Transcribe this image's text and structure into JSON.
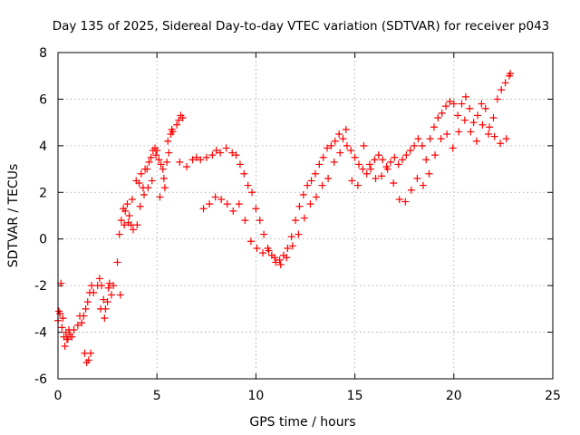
{
  "chart_data": {
    "type": "scatter",
    "title": "Day 135 of 2025, Sidereal Day-to-day VTEC variation (SDTVAR) for receiver p043",
    "xlabel": "GPS time / hours",
    "ylabel": "SDTVAR / TECUs",
    "xlim": [
      0,
      25
    ],
    "ylim": [
      -6,
      8
    ],
    "xticks": [
      0,
      5,
      10,
      15,
      20,
      25
    ],
    "yticks": [
      -6,
      -4,
      -2,
      0,
      2,
      4,
      6,
      8
    ],
    "xtick_labels": [
      "0",
      "5",
      "10",
      "15",
      "20",
      "25"
    ],
    "ytick_labels": [
      "-6",
      "-4",
      "-2",
      "0",
      "2",
      "4",
      "6",
      "8"
    ],
    "grid": true,
    "marker": "plus",
    "series": [
      {
        "name": "SDTVAR",
        "color": "#ff0000",
        "x": [
          0.0,
          0.1,
          0.2,
          0.3,
          0.4,
          0.5,
          0.6,
          0.7,
          0.8,
          1.0,
          1.1,
          1.2,
          1.3,
          1.4,
          1.5,
          1.6,
          1.7,
          1.8,
          2.0,
          2.1,
          2.2,
          2.3,
          2.4,
          2.5,
          2.6,
          2.7,
          2.8,
          3.0,
          3.1,
          3.2,
          3.3,
          3.4,
          3.5,
          3.6,
          3.7,
          3.8,
          4.0,
          4.1,
          4.2,
          4.3,
          4.4,
          4.5,
          4.6,
          4.7,
          4.8,
          4.9,
          5.0,
          5.1,
          5.2,
          5.3,
          5.4,
          5.5,
          5.6,
          5.7,
          5.8,
          6.0,
          6.1,
          6.2,
          6.3,
          6.5,
          6.8,
          7.0,
          7.2,
          7.5,
          7.8,
          8.0,
          8.2,
          8.5,
          8.8,
          9.0,
          9.2,
          9.4,
          9.6,
          9.8,
          10.0,
          10.2,
          10.4,
          10.6,
          10.8,
          11.0,
          11.2,
          11.4,
          11.6,
          11.8,
          12.0,
          12.2,
          12.4,
          12.6,
          12.8,
          13.0,
          13.2,
          13.4,
          13.6,
          13.8,
          14.0,
          14.2,
          14.4,
          14.6,
          14.8,
          15.0,
          15.2,
          15.4,
          15.6,
          15.8,
          16.0,
          16.2,
          16.4,
          16.6,
          16.8,
          17.0,
          17.2,
          17.4,
          17.6,
          17.8,
          18.0,
          18.2,
          18.4,
          18.6,
          18.8,
          19.0,
          19.2,
          19.4,
          19.6,
          19.8,
          20.0,
          20.2,
          20.4,
          20.6,
          20.8,
          21.0,
          21.2,
          21.4,
          21.6,
          21.8,
          22.0,
          22.2,
          22.4,
          22.6,
          22.8,
          0.05,
          0.15,
          0.25,
          0.35,
          0.45,
          0.55,
          1.35,
          1.45,
          1.55,
          1.65,
          2.15,
          2.35,
          2.55,
          3.15,
          3.35,
          3.55,
          3.75,
          3.95,
          4.15,
          4.35,
          4.55,
          4.75,
          4.95,
          5.15,
          5.35,
          5.55,
          5.75,
          6.15,
          7.35,
          7.65,
          7.95,
          8.25,
          8.55,
          8.85,
          9.15,
          9.45,
          9.75,
          10.05,
          10.35,
          10.65,
          10.95,
          11.25,
          11.55,
          11.85,
          12.15,
          12.45,
          12.75,
          13.05,
          13.35,
          13.65,
          13.95,
          14.25,
          14.55,
          14.85,
          15.15,
          15.45,
          15.75,
          16.05,
          16.35,
          16.65,
          16.95,
          17.25,
          17.55,
          17.85,
          18.15,
          18.45,
          18.75,
          19.05,
          19.35,
          19.65,
          19.95,
          20.25,
          20.55,
          20.85,
          21.15,
          21.45,
          21.75,
          22.05,
          22.35,
          22.65,
          22.85
        ],
        "y": [
          -3.5,
          -3.2,
          -3.8,
          -4.2,
          -4.0,
          -4.3,
          -4.1,
          -4.2,
          -3.9,
          -3.7,
          -3.3,
          -3.6,
          -3.3,
          -3.0,
          -2.7,
          -2.3,
          -2.0,
          -2.3,
          -2.0,
          -1.7,
          -2.0,
          -2.6,
          -3.0,
          -2.7,
          -1.9,
          -2.4,
          -2.0,
          -1.0,
          0.2,
          0.8,
          1.3,
          1.2,
          1.5,
          1.0,
          0.6,
          0.4,
          0.6,
          2.4,
          2.8,
          2.2,
          3.0,
          3.0,
          3.3,
          3.5,
          3.8,
          3.9,
          3.8,
          3.4,
          3.2,
          3.0,
          2.2,
          3.3,
          3.7,
          4.5,
          4.6,
          4.9,
          5.1,
          5.3,
          5.2,
          3.1,
          3.4,
          3.5,
          3.4,
          3.5,
          3.6,
          3.8,
          3.7,
          3.9,
          3.7,
          3.6,
          3.2,
          2.8,
          2.3,
          2.0,
          1.3,
          0.8,
          0.2,
          -0.4,
          -0.7,
          -1.0,
          -0.9,
          -0.7,
          -0.4,
          0.1,
          0.8,
          1.4,
          1.9,
          2.3,
          2.5,
          2.8,
          3.2,
          3.5,
          3.9,
          4.0,
          4.2,
          4.5,
          4.3,
          4.0,
          3.8,
          3.5,
          3.2,
          3.0,
          2.8,
          3.0,
          3.4,
          3.6,
          3.4,
          3.1,
          3.3,
          3.5,
          3.2,
          3.4,
          3.6,
          3.8,
          4.0,
          4.3,
          4.0,
          3.4,
          4.3,
          4.8,
          5.2,
          5.4,
          5.7,
          5.9,
          5.8,
          5.3,
          5.8,
          6.1,
          5.6,
          5.0,
          5.3,
          5.8,
          5.6,
          4.8,
          5.2,
          6.0,
          6.4,
          6.7,
          7.0,
          -3.1,
          -1.9,
          -3.4,
          -4.6,
          -4.3,
          -3.9,
          -4.9,
          -5.3,
          -5.2,
          -4.9,
          -3.0,
          -3.4,
          -2.1,
          -2.4,
          0.6,
          0.7,
          1.7,
          2.5,
          1.4,
          1.9,
          2.2,
          2.5,
          3.6,
          1.8,
          2.6,
          4.2,
          4.7,
          3.3,
          1.3,
          1.5,
          1.8,
          1.7,
          1.5,
          1.2,
          1.5,
          0.8,
          -0.1,
          -0.4,
          -0.6,
          -0.5,
          -0.8,
          -1.1,
          -0.8,
          -0.3,
          0.2,
          0.9,
          1.5,
          1.8,
          2.3,
          2.6,
          3.3,
          3.7,
          4.7,
          2.5,
          2.3,
          4.0,
          3.2,
          2.6,
          2.7,
          3.0,
          2.4,
          1.7,
          1.6,
          2.1,
          2.6,
          2.3,
          2.8,
          3.6,
          4.3,
          4.5,
          3.9,
          4.6,
          5.1,
          4.6,
          4.2,
          4.9,
          4.5,
          4.4,
          4.1,
          4.3,
          7.1
        ]
      }
    ]
  }
}
